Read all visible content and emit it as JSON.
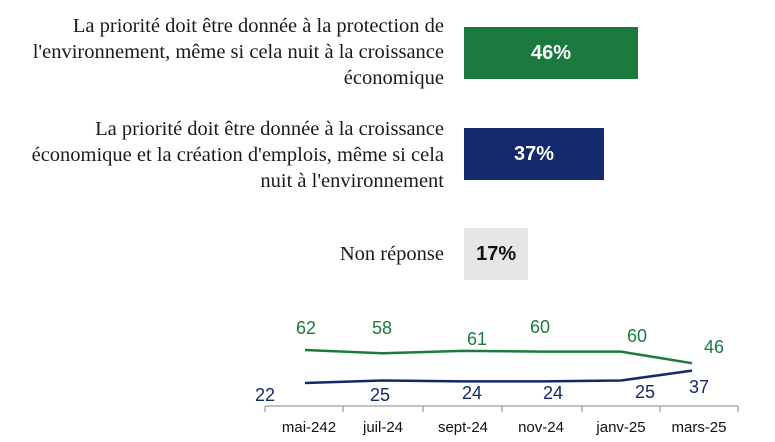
{
  "chart_data": [
    {
      "type": "bar",
      "orientation": "horizontal",
      "categories": [
        "La priorité doit être donnée à la protection de l'environnement, même si cela nuit à la croissance économique",
        "La priorité doit être donnée à la croissance économique et la création d'emplois, même si cela nuit à l'environnement",
        "Non réponse"
      ],
      "values": [
        46,
        37,
        17
      ],
      "value_labels": [
        "46%",
        "37%",
        "17%"
      ],
      "colors": [
        "#1b7a3e",
        "#13296b",
        "#e6e6e6"
      ],
      "label_colors": [
        "#ffffff",
        "#ffffff",
        "#111111"
      ],
      "xlim": [
        0,
        50
      ]
    },
    {
      "type": "line",
      "x": [
        "mai-242",
        "juil-24",
        "sept-24",
        "nov-24",
        "janv-25",
        "mars-25"
      ],
      "series": [
        {
          "color": "#1b7a3e",
          "values": [
            62,
            58,
            61,
            60,
            60,
            46
          ]
        },
        {
          "color": "#13296b",
          "values": [
            22,
            25,
            24,
            24,
            25,
            37
          ]
        }
      ],
      "grid": false
    }
  ]
}
